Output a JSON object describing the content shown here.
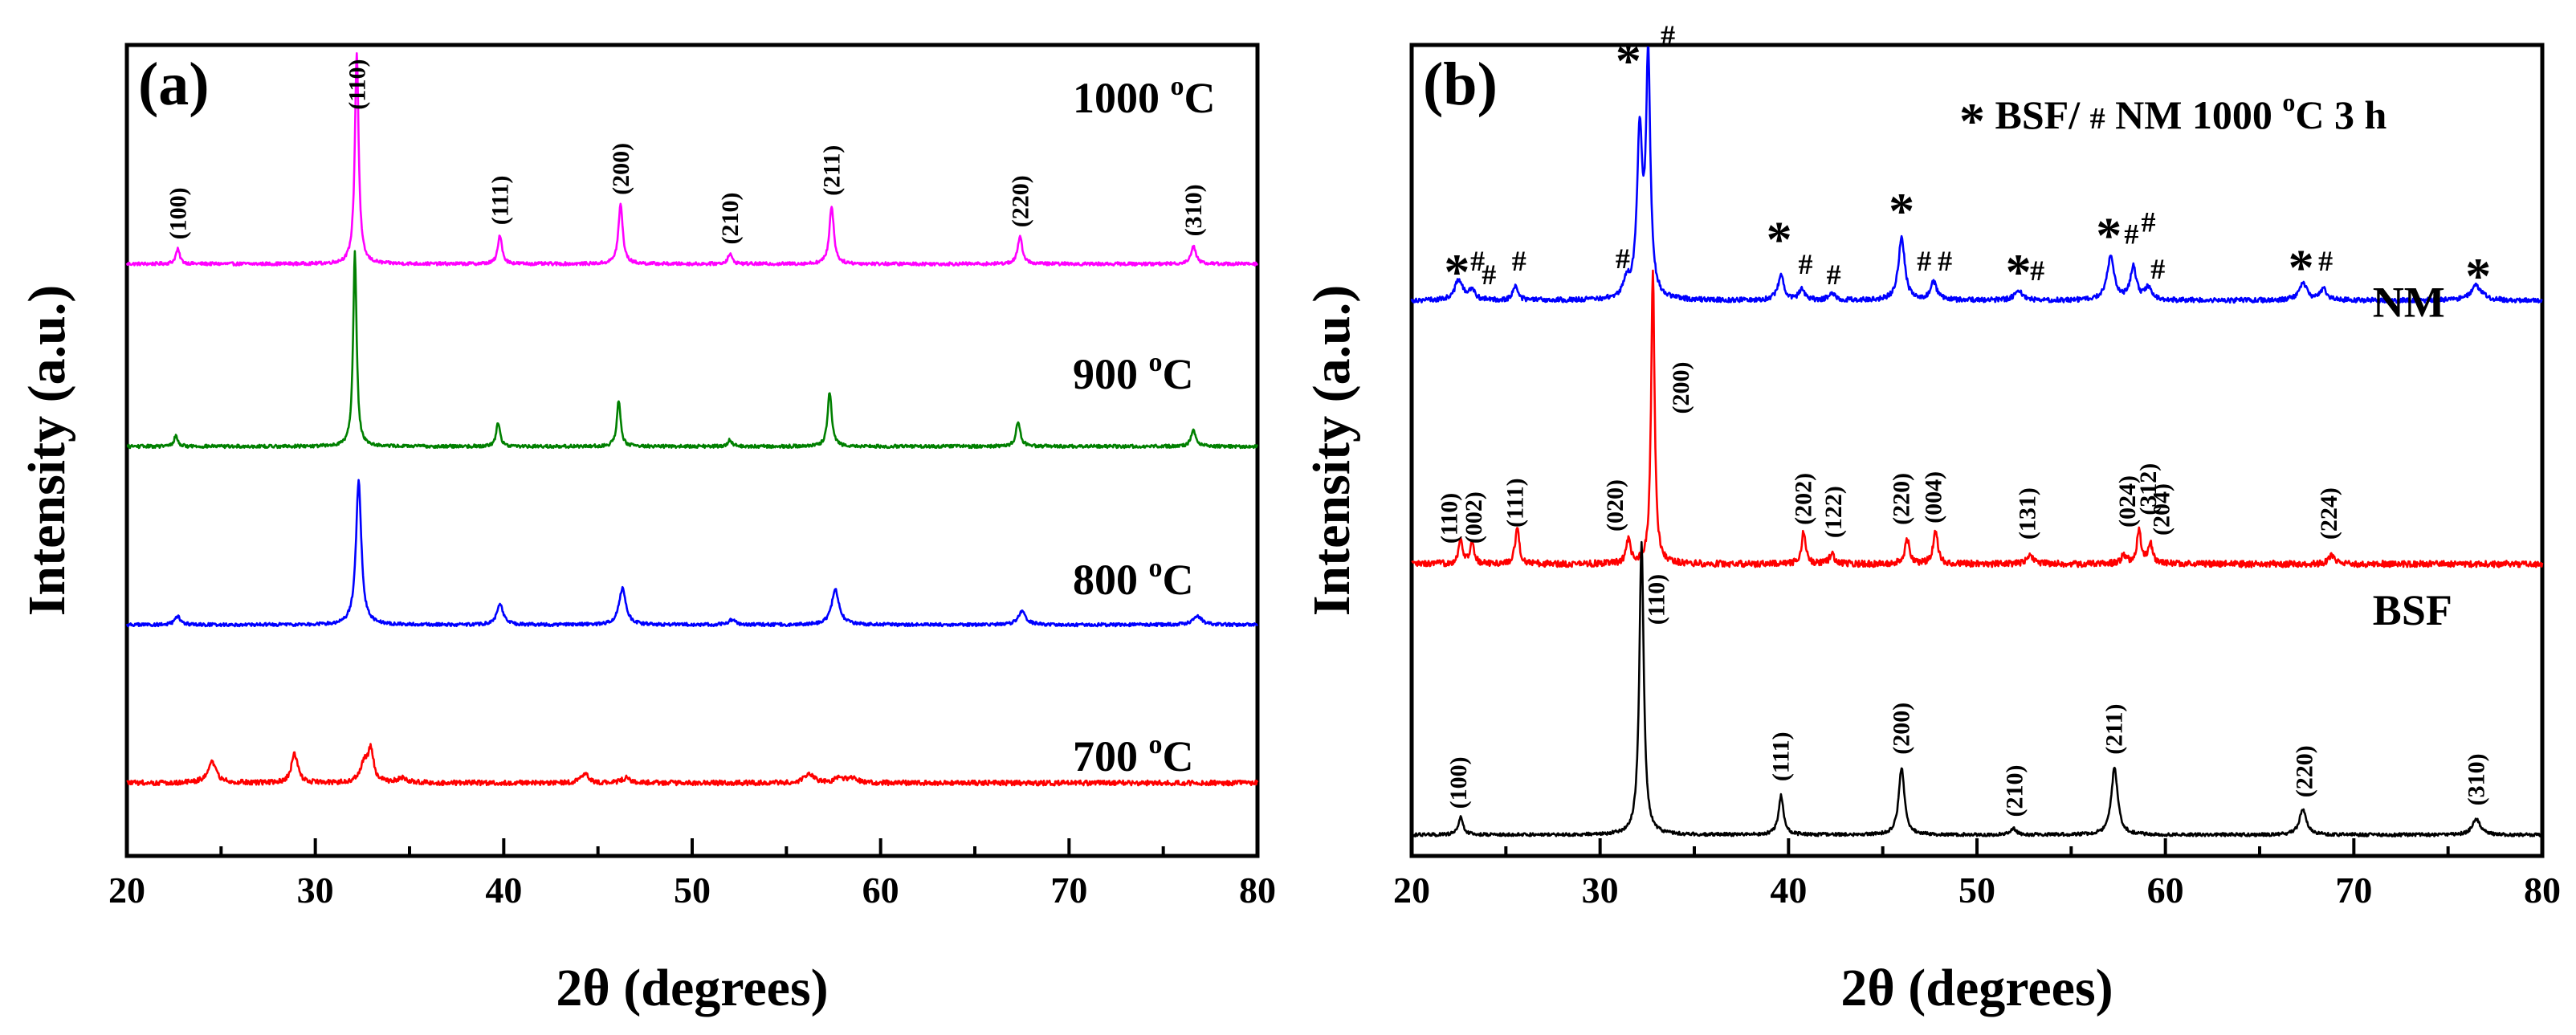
{
  "chart_data": [
    {
      "panel_label": "(a)",
      "type": "line",
      "xlabel": "2θ (degrees)",
      "ylabel": "Intensity (a.u.)",
      "xlim": [
        20,
        80
      ],
      "x_ticks": [
        20,
        30,
        40,
        50,
        60,
        70,
        80
      ],
      "x_tick_labels": [
        "20",
        "30",
        "40",
        "50",
        "60",
        "70",
        "80"
      ],
      "series": [
        {
          "name": "1000 oC",
          "label_main": "1000 ",
          "label_sup": "o",
          "label_unit": "C",
          "color": "#ff00ff",
          "baseline": 0.73,
          "noise": 0.002,
          "peaks": [
            {
              "pos": 22.7,
              "height": 0.018,
              "width": 0.13,
              "index": "(100)"
            },
            {
              "pos": 32.2,
              "height": 0.26,
              "width": 0.12,
              "index": "(110)"
            },
            {
              "pos": 39.8,
              "height": 0.036,
              "width": 0.13,
              "index": "(111)"
            },
            {
              "pos": 46.2,
              "height": 0.073,
              "width": 0.14,
              "index": "(200)"
            },
            {
              "pos": 52.0,
              "height": 0.012,
              "width": 0.14,
              "index": "(210)"
            },
            {
              "pos": 57.4,
              "height": 0.072,
              "width": 0.14,
              "index": "(211)"
            },
            {
              "pos": 67.4,
              "height": 0.033,
              "width": 0.15,
              "index": "(220)"
            },
            {
              "pos": 76.6,
              "height": 0.022,
              "width": 0.16,
              "index": "(310)"
            }
          ]
        },
        {
          "name": "900 oC",
          "label_main": "900 ",
          "label_sup": "o",
          "label_unit": "C",
          "color": "#008000",
          "baseline": 0.505,
          "noise": 0.002,
          "peaks": [
            {
              "pos": 22.6,
              "height": 0.013,
              "width": 0.12
            },
            {
              "pos": 32.1,
              "height": 0.24,
              "width": 0.11
            },
            {
              "pos": 39.7,
              "height": 0.03,
              "width": 0.12
            },
            {
              "pos": 46.1,
              "height": 0.057,
              "width": 0.12
            },
            {
              "pos": 52.0,
              "height": 0.008,
              "width": 0.12
            },
            {
              "pos": 57.3,
              "height": 0.067,
              "width": 0.13
            },
            {
              "pos": 67.3,
              "height": 0.03,
              "width": 0.14
            },
            {
              "pos": 76.6,
              "height": 0.02,
              "width": 0.15
            }
          ]
        },
        {
          "name": "800 oC",
          "label_main": "800 ",
          "label_sup": "o",
          "label_unit": "C",
          "color": "#0000ff",
          "baseline": 0.285,
          "noise": 0.002,
          "peaks": [
            {
              "pos": 22.7,
              "height": 0.01,
              "width": 0.18
            },
            {
              "pos": 32.3,
              "height": 0.177,
              "width": 0.17
            },
            {
              "pos": 39.8,
              "height": 0.025,
              "width": 0.2
            },
            {
              "pos": 46.3,
              "height": 0.045,
              "width": 0.22
            },
            {
              "pos": 52.1,
              "height": 0.006,
              "width": 0.22
            },
            {
              "pos": 57.6,
              "height": 0.043,
              "width": 0.24
            },
            {
              "pos": 67.5,
              "height": 0.016,
              "width": 0.25
            },
            {
              "pos": 76.8,
              "height": 0.011,
              "width": 0.28
            }
          ]
        },
        {
          "name": "700 oC",
          "label_main": "700 ",
          "label_sup": "o",
          "label_unit": "C",
          "color": "#ff0000",
          "baseline": 0.09,
          "noise": 0.003,
          "peaks": [
            {
              "pos": 24.5,
              "height": 0.025,
              "width": 0.28
            },
            {
              "pos": 28.9,
              "height": 0.036,
              "width": 0.2
            },
            {
              "pos": 32.6,
              "height": 0.024,
              "width": 0.25
            },
            {
              "pos": 32.95,
              "height": 0.038,
              "width": 0.17
            },
            {
              "pos": 34.6,
              "height": 0.006,
              "width": 0.3
            },
            {
              "pos": 44.3,
              "height": 0.012,
              "width": 0.22
            },
            {
              "pos": 46.5,
              "height": 0.006,
              "width": 0.3
            },
            {
              "pos": 56.2,
              "height": 0.012,
              "width": 0.28
            },
            {
              "pos": 57.8,
              "height": 0.006,
              "width": 0.3
            },
            {
              "pos": 58.5,
              "height": 0.006,
              "width": 0.3
            }
          ]
        }
      ]
    },
    {
      "panel_label": "(b)",
      "type": "line",
      "xlabel": "2θ (degrees)",
      "ylabel": "Intensity (a.u.)",
      "xlim": [
        20,
        80
      ],
      "x_ticks": [
        20,
        30,
        40,
        50,
        60,
        70,
        80
      ],
      "x_tick_labels": [
        "20",
        "30",
        "40",
        "50",
        "60",
        "70",
        "80"
      ],
      "legend": {
        "star": "*",
        "text1": " BSF/ ",
        "hash": "#",
        "text2": " NM 1000 ",
        "sup": "o",
        "text3": "C 3 h"
      },
      "series": [
        {
          "name": "BSF/NM 1000 oC 3 h",
          "color": "#0000ff",
          "baseline": 0.685,
          "noise": 0.003,
          "peaks": [
            {
              "pos": 22.5,
              "height": 0.025,
              "width": 0.25
            },
            {
              "pos": 23.2,
              "height": 0.012,
              "width": 0.2
            },
            {
              "pos": 25.5,
              "height": 0.018,
              "width": 0.15
            },
            {
              "pos": 31.4,
              "height": 0.02,
              "width": 0.2
            },
            {
              "pos": 32.1,
              "height": 0.2,
              "width": 0.17
            },
            {
              "pos": 32.55,
              "height": 0.29,
              "width": 0.14
            },
            {
              "pos": 39.6,
              "height": 0.03,
              "width": 0.2
            },
            {
              "pos": 40.7,
              "height": 0.013,
              "width": 0.18
            },
            {
              "pos": 42.3,
              "height": 0.008,
              "width": 0.2
            },
            {
              "pos": 46.0,
              "height": 0.078,
              "width": 0.2
            },
            {
              "pos": 47.7,
              "height": 0.022,
              "width": 0.2
            },
            {
              "pos": 52.2,
              "height": 0.012,
              "width": 0.25
            },
            {
              "pos": 57.1,
              "height": 0.055,
              "width": 0.22
            },
            {
              "pos": 58.3,
              "height": 0.04,
              "width": 0.2
            },
            {
              "pos": 59.1,
              "height": 0.015,
              "width": 0.2
            },
            {
              "pos": 67.3,
              "height": 0.022,
              "width": 0.25
            },
            {
              "pos": 68.4,
              "height": 0.014,
              "width": 0.2
            },
            {
              "pos": 76.5,
              "height": 0.018,
              "width": 0.35
            }
          ],
          "markers": [
            {
              "text": "*",
              "kind": "star",
              "x": 22.4,
              "y": 0.725
            },
            {
              "text": "#",
              "kind": "hash",
              "x": 23.5,
              "y": 0.722
            },
            {
              "text": "#",
              "kind": "hash",
              "x": 24.1,
              "y": 0.705
            },
            {
              "text": "#",
              "kind": "hash",
              "x": 25.7,
              "y": 0.722
            },
            {
              "text": "#",
              "kind": "hash",
              "x": 31.2,
              "y": 0.725
            },
            {
              "text": "*",
              "kind": "star",
              "x": 31.5,
              "y": 0.985
            },
            {
              "text": "#",
              "kind": "hash",
              "x": 33.6,
              "y": 1.0
            },
            {
              "text": "*",
              "kind": "star",
              "x": 39.5,
              "y": 0.765
            },
            {
              "text": "#",
              "kind": "hash",
              "x": 40.9,
              "y": 0.718
            },
            {
              "text": "#",
              "kind": "hash",
              "x": 42.4,
              "y": 0.705
            },
            {
              "text": "*",
              "kind": "star",
              "x": 46.0,
              "y": 0.8
            },
            {
              "text": "#",
              "kind": "hash",
              "x": 47.2,
              "y": 0.722
            },
            {
              "text": "#",
              "kind": "hash",
              "x": 48.3,
              "y": 0.722
            },
            {
              "text": "*",
              "kind": "star",
              "x": 52.2,
              "y": 0.725
            },
            {
              "text": "#",
              "kind": "hash",
              "x": 53.2,
              "y": 0.71
            },
            {
              "text": "*",
              "kind": "star",
              "x": 57.0,
              "y": 0.77
            },
            {
              "text": "#",
              "kind": "hash",
              "x": 58.2,
              "y": 0.755
            },
            {
              "text": "#",
              "kind": "hash",
              "x": 59.1,
              "y": 0.77
            },
            {
              "text": "#",
              "kind": "hash",
              "x": 59.6,
              "y": 0.712
            },
            {
              "text": "*",
              "kind": "star",
              "x": 67.2,
              "y": 0.73
            },
            {
              "text": "#",
              "kind": "hash",
              "x": 68.5,
              "y": 0.722
            },
            {
              "text": "*",
              "kind": "star",
              "x": 76.6,
              "y": 0.72
            }
          ]
        },
        {
          "name": "NM",
          "color": "#ff0000",
          "baseline": 0.36,
          "noise": 0.004,
          "peaks": [
            {
              "pos": 22.6,
              "height": 0.03,
              "width": 0.13
            },
            {
              "pos": 23.2,
              "height": 0.025,
              "width": 0.13
            },
            {
              "pos": 25.6,
              "height": 0.045,
              "width": 0.13
            },
            {
              "pos": 31.5,
              "height": 0.03,
              "width": 0.13
            },
            {
              "pos": 32.8,
              "height": 0.36,
              "width": 0.11
            },
            {
              "pos": 40.8,
              "height": 0.04,
              "width": 0.13
            },
            {
              "pos": 42.3,
              "height": 0.015,
              "width": 0.13
            },
            {
              "pos": 46.3,
              "height": 0.03,
              "width": 0.15
            },
            {
              "pos": 47.8,
              "height": 0.04,
              "width": 0.15
            },
            {
              "pos": 52.8,
              "height": 0.012,
              "width": 0.2
            },
            {
              "pos": 57.8,
              "height": 0.01,
              "width": 0.18
            },
            {
              "pos": 58.6,
              "height": 0.04,
              "width": 0.14
            },
            {
              "pos": 59.2,
              "height": 0.025,
              "width": 0.14
            },
            {
              "pos": 68.8,
              "height": 0.01,
              "width": 0.2
            }
          ]
        },
        {
          "name": "BSF",
          "color": "#000000",
          "baseline": 0.026,
          "noise": 0.002,
          "peaks": [
            {
              "pos": 22.6,
              "height": 0.022,
              "width": 0.15
            },
            {
              "pos": 32.2,
              "height": 0.36,
              "width": 0.14
            },
            {
              "pos": 39.6,
              "height": 0.048,
              "width": 0.16
            },
            {
              "pos": 46.0,
              "height": 0.083,
              "width": 0.18
            },
            {
              "pos": 51.9,
              "height": 0.008,
              "width": 0.18
            },
            {
              "pos": 57.3,
              "height": 0.083,
              "width": 0.2
            },
            {
              "pos": 67.3,
              "height": 0.032,
              "width": 0.22
            },
            {
              "pos": 76.5,
              "height": 0.02,
              "width": 0.25
            }
          ]
        }
      ],
      "curve_labels": [
        {
          "text": "NM",
          "x": 71.0,
          "y": 0.665
        },
        {
          "text": "BSF",
          "x": 71.0,
          "y": 0.285
        }
      ],
      "hkl_labels": [
        {
          "text": "(110)",
          "x": 22.4,
          "y": 0.385
        },
        {
          "text": "(002)",
          "x": 23.7,
          "y": 0.385
        },
        {
          "text": "(111)",
          "x": 25.9,
          "y": 0.405
        },
        {
          "text": "(020)",
          "x": 31.2,
          "y": 0.4
        },
        {
          "text": "(200)",
          "x": 34.7,
          "y": 0.545
        },
        {
          "text": "(202)",
          "x": 41.2,
          "y": 0.408
        },
        {
          "text": "(122)",
          "x": 42.8,
          "y": 0.392
        },
        {
          "text": "(220)",
          "x": 46.4,
          "y": 0.408
        },
        {
          "text": "(004)",
          "x": 48.1,
          "y": 0.41
        },
        {
          "text": "(131)",
          "x": 53.1,
          "y": 0.39
        },
        {
          "text": "(024)",
          "x": 58.4,
          "y": 0.405
        },
        {
          "text": "(312)",
          "x": 59.5,
          "y": 0.42
        },
        {
          "text": "(204)",
          "x": 60.2,
          "y": 0.395
        },
        {
          "text": "(224)",
          "x": 69.1,
          "y": 0.39
        },
        {
          "text": "(100)",
          "x": 22.9,
          "y": 0.058
        },
        {
          "text": "(110)",
          "x": 33.4,
          "y": 0.285
        },
        {
          "text": "(111)",
          "x": 40.0,
          "y": 0.092
        },
        {
          "text": "(200)",
          "x": 46.4,
          "y": 0.125
        },
        {
          "text": "(210)",
          "x": 52.4,
          "y": 0.048
        },
        {
          "text": "(211)",
          "x": 57.7,
          "y": 0.125
        },
        {
          "text": "(220)",
          "x": 67.8,
          "y": 0.072
        },
        {
          "text": "(310)",
          "x": 76.9,
          "y": 0.062
        }
      ]
    }
  ]
}
